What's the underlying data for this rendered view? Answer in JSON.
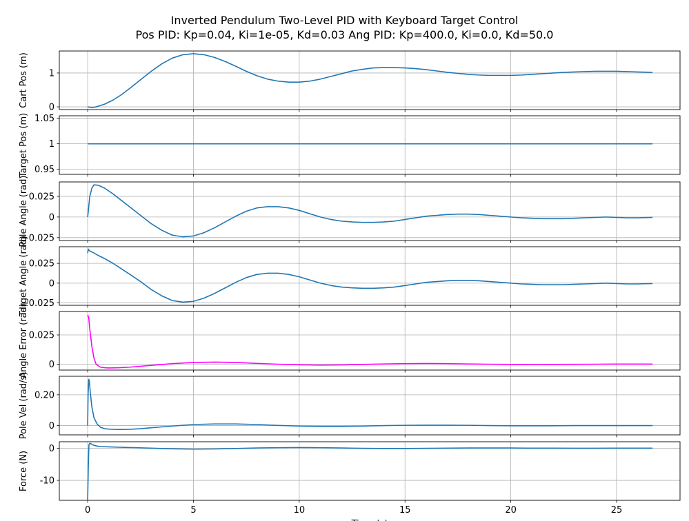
{
  "figure": {
    "title_line1": "Inverted Pendulum Two-Level PID with Keyboard Target Control",
    "title_line2": "Pos PID: Kp=0.04, Ki=1e-05, Kd=0.03    Ang PID: Kp=400.0, Ki=0.0, Kd=50.0",
    "xlabel": "Time (s)"
  },
  "chart_data": [
    {
      "type": "line",
      "ylabel": "Cart Pos (m)",
      "xlim": [
        -1.34,
        28.0
      ],
      "ylim": [
        -0.08,
        1.65
      ],
      "yticks": [
        0,
        1
      ],
      "grid": true,
      "series": [
        {
          "color": "#1f77b4",
          "x": [
            0,
            0.2,
            0.4,
            0.8,
            1.2,
            1.6,
            2.0,
            2.5,
            3.0,
            3.5,
            4.0,
            4.5,
            5.0,
            5.5,
            6.0,
            6.5,
            7.0,
            7.5,
            8.0,
            8.5,
            9.0,
            9.5,
            10.0,
            10.5,
            11.0,
            11.5,
            12.0,
            12.5,
            13.0,
            13.5,
            14.0,
            14.5,
            15.0,
            15.5,
            16.0,
            16.5,
            17.0,
            17.5,
            18.0,
            18.5,
            19.0,
            19.5,
            20.0,
            20.5,
            21.0,
            21.5,
            22.0,
            22.5,
            23.0,
            23.5,
            24.0,
            24.5,
            25.0,
            25.5,
            26.0,
            26.7
          ],
          "y": [
            0.0,
            -0.02,
            0.0,
            0.08,
            0.2,
            0.36,
            0.55,
            0.8,
            1.05,
            1.27,
            1.44,
            1.54,
            1.57,
            1.54,
            1.46,
            1.34,
            1.2,
            1.05,
            0.92,
            0.82,
            0.76,
            0.73,
            0.73,
            0.76,
            0.82,
            0.9,
            0.98,
            1.06,
            1.11,
            1.15,
            1.16,
            1.16,
            1.15,
            1.13,
            1.1,
            1.06,
            1.02,
            0.99,
            0.96,
            0.94,
            0.93,
            0.93,
            0.93,
            0.94,
            0.96,
            0.98,
            1.0,
            1.02,
            1.03,
            1.04,
            1.05,
            1.05,
            1.05,
            1.04,
            1.03,
            1.02
          ]
        }
      ]
    },
    {
      "type": "line",
      "ylabel": "Target Pos (m)",
      "xlim": [
        -1.34,
        28.0
      ],
      "ylim": [
        0.94,
        1.055
      ],
      "yticks": [
        0.95,
        1.0,
        1.05
      ],
      "grid": true,
      "series": [
        {
          "color": "#1f77b4",
          "x": [
            0,
            26.7
          ],
          "y": [
            1.0,
            1.0
          ]
        }
      ]
    },
    {
      "type": "line",
      "ylabel": "Pole Angle (rad)",
      "xlim": [
        -1.34,
        28.0
      ],
      "ylim": [
        -0.0285,
        0.0425
      ],
      "yticks": [
        -0.025,
        0.0,
        0.025
      ],
      "grid": true,
      "series": [
        {
          "color": "#1f77b4",
          "x": [
            0,
            0.05,
            0.1,
            0.2,
            0.3,
            0.5,
            0.8,
            1.2,
            1.6,
            2.0,
            2.5,
            3.0,
            3.5,
            4.0,
            4.5,
            5.0,
            5.5,
            6.0,
            6.5,
            7.0,
            7.5,
            8.0,
            8.5,
            9.0,
            9.5,
            10.0,
            10.5,
            11.0,
            11.5,
            12.0,
            12.5,
            13.0,
            13.5,
            14.0,
            14.5,
            15.0,
            15.5,
            16.0,
            16.5,
            17.0,
            17.5,
            18.0,
            18.5,
            19.0,
            19.5,
            20.0,
            20.5,
            21.0,
            21.5,
            22.0,
            22.5,
            23.0,
            23.5,
            24.0,
            24.5,
            25.0,
            25.5,
            26.0,
            26.7
          ],
          "y": [
            0.0,
            0.012,
            0.025,
            0.035,
            0.039,
            0.0385,
            0.035,
            0.028,
            0.02,
            0.012,
            0.002,
            -0.008,
            -0.016,
            -0.022,
            -0.024,
            -0.023,
            -0.019,
            -0.013,
            -0.006,
            0.001,
            0.007,
            0.011,
            0.0125,
            0.0125,
            0.011,
            0.008,
            0.004,
            0.0,
            -0.003,
            -0.005,
            -0.006,
            -0.0065,
            -0.0065,
            -0.006,
            -0.005,
            -0.003,
            -0.001,
            0.001,
            0.002,
            0.003,
            0.0035,
            0.0035,
            0.003,
            0.002,
            0.001,
            0.0,
            -0.001,
            -0.0015,
            -0.002,
            -0.002,
            -0.002,
            -0.0015,
            -0.001,
            -0.0005,
            0.0,
            -0.0005,
            -0.001,
            -0.001,
            -0.0005
          ]
        }
      ]
    },
    {
      "type": "line",
      "ylabel": "Target Angle (rad)",
      "xlim": [
        -1.34,
        28.0
      ],
      "ylim": [
        -0.028,
        0.046
      ],
      "yticks": [
        -0.025,
        0.0,
        0.025
      ],
      "grid": true,
      "series": [
        {
          "color": "#1f77b4",
          "x": [
            0,
            0.03,
            0.08,
            0.15,
            0.3,
            0.5,
            0.8,
            1.2,
            1.6,
            2.0,
            2.5,
            3.0,
            3.5,
            4.0,
            4.5,
            5.0,
            5.5,
            6.0,
            6.5,
            7.0,
            7.5,
            8.0,
            8.5,
            9.0,
            9.5,
            10.0,
            10.5,
            11.0,
            11.5,
            12.0,
            12.5,
            13.0,
            13.5,
            14.0,
            14.5,
            15.0,
            15.5,
            16.0,
            16.5,
            17.0,
            17.5,
            18.0,
            18.5,
            19.0,
            19.5,
            20.0,
            20.5,
            21.0,
            21.5,
            22.0,
            22.5,
            23.0,
            23.5,
            24.0,
            24.5,
            25.0,
            25.5,
            26.0,
            26.7
          ],
          "y": [
            0.038,
            0.043,
            0.041,
            0.04,
            0.038,
            0.035,
            0.031,
            0.025,
            0.018,
            0.011,
            0.002,
            -0.008,
            -0.016,
            -0.022,
            -0.024,
            -0.023,
            -0.019,
            -0.013,
            -0.006,
            0.001,
            0.007,
            0.011,
            0.0125,
            0.0125,
            0.011,
            0.008,
            0.004,
            0.0,
            -0.003,
            -0.005,
            -0.006,
            -0.0065,
            -0.0065,
            -0.006,
            -0.005,
            -0.003,
            -0.001,
            0.001,
            0.002,
            0.003,
            0.0035,
            0.0035,
            0.003,
            0.002,
            0.001,
            0.0,
            -0.001,
            -0.0015,
            -0.002,
            -0.002,
            -0.002,
            -0.0015,
            -0.001,
            -0.0005,
            0.0,
            -0.0005,
            -0.001,
            -0.001,
            -0.0005
          ]
        }
      ]
    },
    {
      "type": "line",
      "ylabel": "Angle Error (rad)",
      "xlim": [
        -1.34,
        28.0
      ],
      "ylim": [
        -0.005,
        0.045
      ],
      "yticks": [
        0.0,
        0.025
      ],
      "grid": true,
      "series": [
        {
          "color": "#ff00ff",
          "x": [
            0,
            0.05,
            0.1,
            0.2,
            0.3,
            0.4,
            0.6,
            0.8,
            1.0,
            1.5,
            2.0,
            3.0,
            4.0,
            5.0,
            6.0,
            7.0,
            8.0,
            9.0,
            10.0,
            11.0,
            12.0,
            13.0,
            14.0,
            15.0,
            16.0,
            17.0,
            18.0,
            19.0,
            20.0,
            21.0,
            22.0,
            23.0,
            24.0,
            25.0,
            26.0,
            26.7
          ],
          "y": [
            0.042,
            0.04,
            0.03,
            0.015,
            0.005,
            0.0,
            -0.0025,
            -0.003,
            -0.0032,
            -0.003,
            -0.0025,
            -0.001,
            0.0005,
            0.0015,
            0.0018,
            0.0015,
            0.0007,
            0.0,
            -0.0005,
            -0.0008,
            -0.0006,
            -0.0002,
            0.0002,
            0.0005,
            0.0006,
            0.0005,
            0.0002,
            0.0,
            -0.0002,
            -0.0003,
            -0.0002,
            -0.0001,
            0.0,
            0.0001,
            0.0001,
            0.0001
          ]
        }
      ]
    },
    {
      "type": "line",
      "ylabel": "Pole Vel (rad/s)",
      "xlim": [
        -1.34,
        28.0
      ],
      "ylim": [
        -0.06,
        0.32
      ],
      "yticks": [
        0.0,
        0.2
      ],
      "grid": true,
      "series": [
        {
          "color": "#1f77b4",
          "x": [
            0,
            0.02,
            0.05,
            0.08,
            0.12,
            0.2,
            0.3,
            0.45,
            0.6,
            0.8,
            1.0,
            1.5,
            2.0,
            2.5,
            3.0,
            4.0,
            5.0,
            6.0,
            7.0,
            8.0,
            9.0,
            10.0,
            11.0,
            12.0,
            13.0,
            14.0,
            15.0,
            16.0,
            17.0,
            18.0,
            19.0,
            20.0,
            21.0,
            22.0,
            23.0,
            24.0,
            25.0,
            26.0,
            26.7
          ],
          "y": [
            0.0,
            0.2,
            0.3,
            0.29,
            0.22,
            0.12,
            0.05,
            0.01,
            -0.01,
            -0.02,
            -0.023,
            -0.025,
            -0.024,
            -0.02,
            -0.014,
            -0.003,
            0.007,
            0.011,
            0.011,
            0.007,
            0.001,
            -0.003,
            -0.005,
            -0.005,
            -0.003,
            0.0,
            0.002,
            0.003,
            0.003,
            0.002,
            0.0,
            -0.001,
            -0.001,
            -0.001,
            0.0,
            0.0,
            0.0,
            0.0,
            0.0
          ]
        }
      ]
    },
    {
      "type": "line",
      "ylabel": "Force (N)",
      "xlabel": "Time (s)",
      "xlim": [
        -1.34,
        28.0
      ],
      "ylim": [
        -16.2,
        2.0
      ],
      "yticks": [
        0,
        -10
      ],
      "xticks": [
        0,
        5,
        10,
        15,
        20,
        25
      ],
      "grid": true,
      "series": [
        {
          "color": "#1f77b4",
          "x": [
            0,
            0.03,
            0.06,
            0.1,
            0.15,
            0.25,
            0.4,
            0.6,
            1.0,
            1.5,
            2.0,
            3.0,
            4.0,
            5.0,
            6.0,
            7.0,
            8.0,
            9.0,
            10.0,
            11.0,
            12.0,
            13.0,
            14.0,
            15.0,
            16.0,
            17.0,
            18.0,
            19.0,
            20.0,
            21.0,
            22.0,
            23.0,
            24.0,
            25.0,
            26.0,
            26.7
          ],
          "y": [
            -16.0,
            -6.0,
            1.0,
            1.5,
            1.4,
            1.0,
            0.7,
            0.5,
            0.4,
            0.3,
            0.2,
            0.0,
            -0.2,
            -0.3,
            -0.25,
            -0.1,
            0.05,
            0.15,
            0.2,
            0.15,
            0.05,
            -0.05,
            -0.1,
            -0.1,
            -0.05,
            0.0,
            0.05,
            0.05,
            0.05,
            0.0,
            0.0,
            -0.02,
            -0.02,
            0.0,
            0.0,
            0.0
          ]
        }
      ]
    }
  ]
}
